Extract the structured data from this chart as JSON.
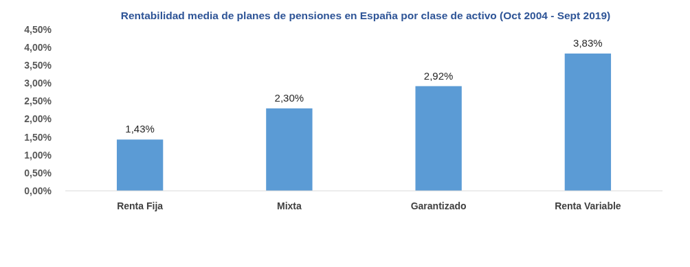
{
  "chart_data": {
    "type": "bar",
    "title": "Rentabilidad media de planes de pensiones en España por clase de activo (Oct 2004 - Sept 2019)",
    "categories": [
      "Renta Fija",
      "Mixta",
      "Garantizado",
      "Renta Variable"
    ],
    "values": [
      1.43,
      2.3,
      2.92,
      3.83
    ],
    "value_labels": [
      "1,43%",
      "2,30%",
      "2,92%",
      "3,83%"
    ],
    "color": "#5b9bd5",
    "ylim": [
      0,
      4.5
    ],
    "yticks": [
      {
        "value": 0,
        "label": "0,00%"
      },
      {
        "value": 0.5,
        "label": "0,50%"
      },
      {
        "value": 1,
        "label": "1,00%"
      },
      {
        "value": 1.5,
        "label": "1,50%"
      },
      {
        "value": 2,
        "label": "2,00%"
      },
      {
        "value": 2.5,
        "label": "2,50%"
      },
      {
        "value": 3,
        "label": "3,00%"
      },
      {
        "value": 3.5,
        "label": "3,50%"
      },
      {
        "value": 4,
        "label": "4,00%"
      },
      {
        "value": 4.5,
        "label": "4,50%"
      }
    ],
    "grid": false
  }
}
